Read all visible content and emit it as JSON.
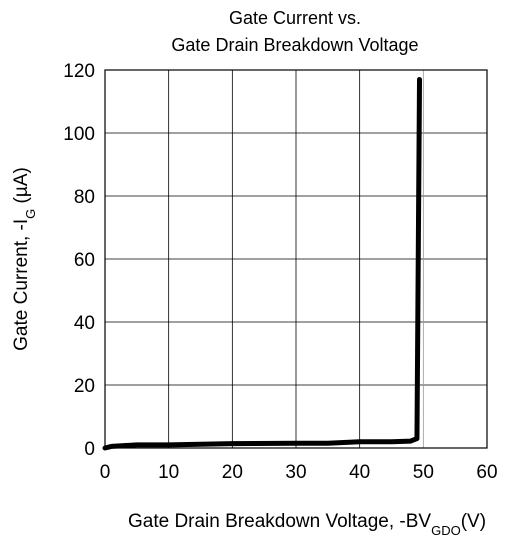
{
  "chart_data": {
    "type": "line",
    "title": [
      "Gate  Current vs.",
      "Gate Drain Breakdown Voltage"
    ],
    "xlabel": {
      "text": "Gate Drain Breakdown Voltage, -BV",
      "sub": "GDO",
      "suffix": "(V)"
    },
    "ylabel": {
      "text": "Gate Current, -I",
      "sub": "G",
      "suffix": " (µA)"
    },
    "x": [
      0,
      1,
      5,
      10,
      20,
      30,
      35,
      40,
      45,
      48,
      49,
      49.2,
      49.4
    ],
    "series": [
      {
        "name": "-IG",
        "color": "#000000",
        "values": [
          0,
          0.5,
          1,
          1,
          1.4,
          1.5,
          1.5,
          2,
          2,
          2.2,
          3,
          60,
          117
        ]
      }
    ],
    "xlim": [
      0,
      60
    ],
    "xticks": [
      0,
      10,
      20,
      30,
      40,
      50,
      60
    ],
    "ylim": [
      0,
      120
    ],
    "yticks": [
      0,
      20,
      40,
      60,
      80,
      100,
      120
    ],
    "grid": true
  }
}
